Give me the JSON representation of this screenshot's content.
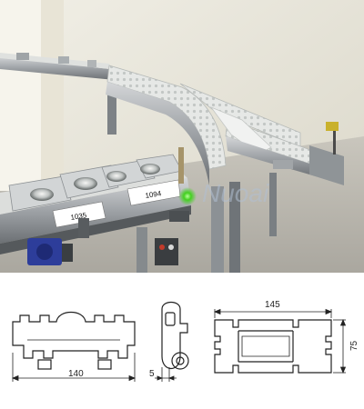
{
  "photo": {
    "tray_labels": [
      "1035",
      "1094"
    ],
    "watermark": "Nuoai"
  },
  "drawings": {
    "chain_module": {
      "width_label": "140"
    },
    "side_profile": {
      "offset_label": "5"
    },
    "aluminium_profile": {
      "width_label": "145",
      "height_label": "75"
    }
  }
}
